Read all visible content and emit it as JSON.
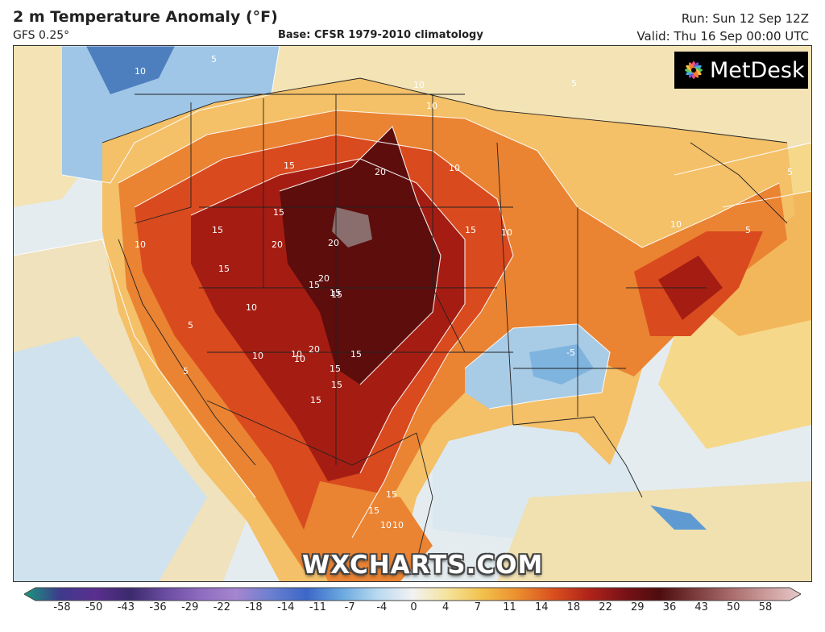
{
  "header": {
    "title": "2 m Temperature Anomaly (°F)",
    "model": "GFS 0.25°",
    "base": "Base: CFSR 1979-2010 climatology",
    "run": "Run: Sun 12 Sep 12Z",
    "valid": "Valid: Thu 16 Sep 00:00 UTC"
  },
  "brand": {
    "name": "MetDesk",
    "icon": "metdesk-flower-logo"
  },
  "watermark": "WXCHARTS.COM",
  "map": {
    "contour_labels": [
      "10",
      "5",
      "10",
      "10",
      "5",
      "10",
      "15",
      "20",
      "15",
      "15",
      "20",
      "20",
      "20",
      "15",
      "15",
      "10",
      "10",
      "15",
      "15",
      "10",
      "5",
      "10",
      "15",
      "20",
      "10",
      "15",
      "15",
      "15",
      "10",
      "5",
      "15",
      "15",
      "10",
      "15",
      "-5",
      "10",
      "5",
      "10",
      "5"
    ],
    "colors": {
      "ocean": "#e4ecf0",
      "cold": "#7fb4df",
      "cool": "#c9e0ef",
      "neutral": "#f3e7c2",
      "warm": "#f4c068",
      "hot": "#ea8332",
      "hotter": "#d94a1e",
      "very_hot": "#a51d12",
      "extreme": "#5c0d0c",
      "contour": "#ffffff",
      "borders": "#222222"
    }
  },
  "colorbar": {
    "ticks": [
      "-58",
      "-50",
      "-43",
      "-36",
      "-29",
      "-22",
      "-18",
      "-14",
      "-11",
      "-7",
      "-4",
      "0",
      "4",
      "7",
      "11",
      "14",
      "18",
      "22",
      "29",
      "36",
      "43",
      "50",
      "58"
    ],
    "colors": [
      "#1a9a7e",
      "#3d3a8c",
      "#5a2f8f",
      "#3c2a6e",
      "#6a4ca0",
      "#8e6cc0",
      "#a585d0",
      "#6a7fd0",
      "#3c67c8",
      "#6aa8e0",
      "#b8d9f0",
      "#f2f2f2",
      "#f5e39a",
      "#f2c04a",
      "#eb8c2e",
      "#d94f1e",
      "#b0231a",
      "#7a1216",
      "#4e0c0e",
      "#7a3b3b",
      "#a86a6a",
      "#cc9a9a",
      "#e7c8c8"
    ]
  }
}
